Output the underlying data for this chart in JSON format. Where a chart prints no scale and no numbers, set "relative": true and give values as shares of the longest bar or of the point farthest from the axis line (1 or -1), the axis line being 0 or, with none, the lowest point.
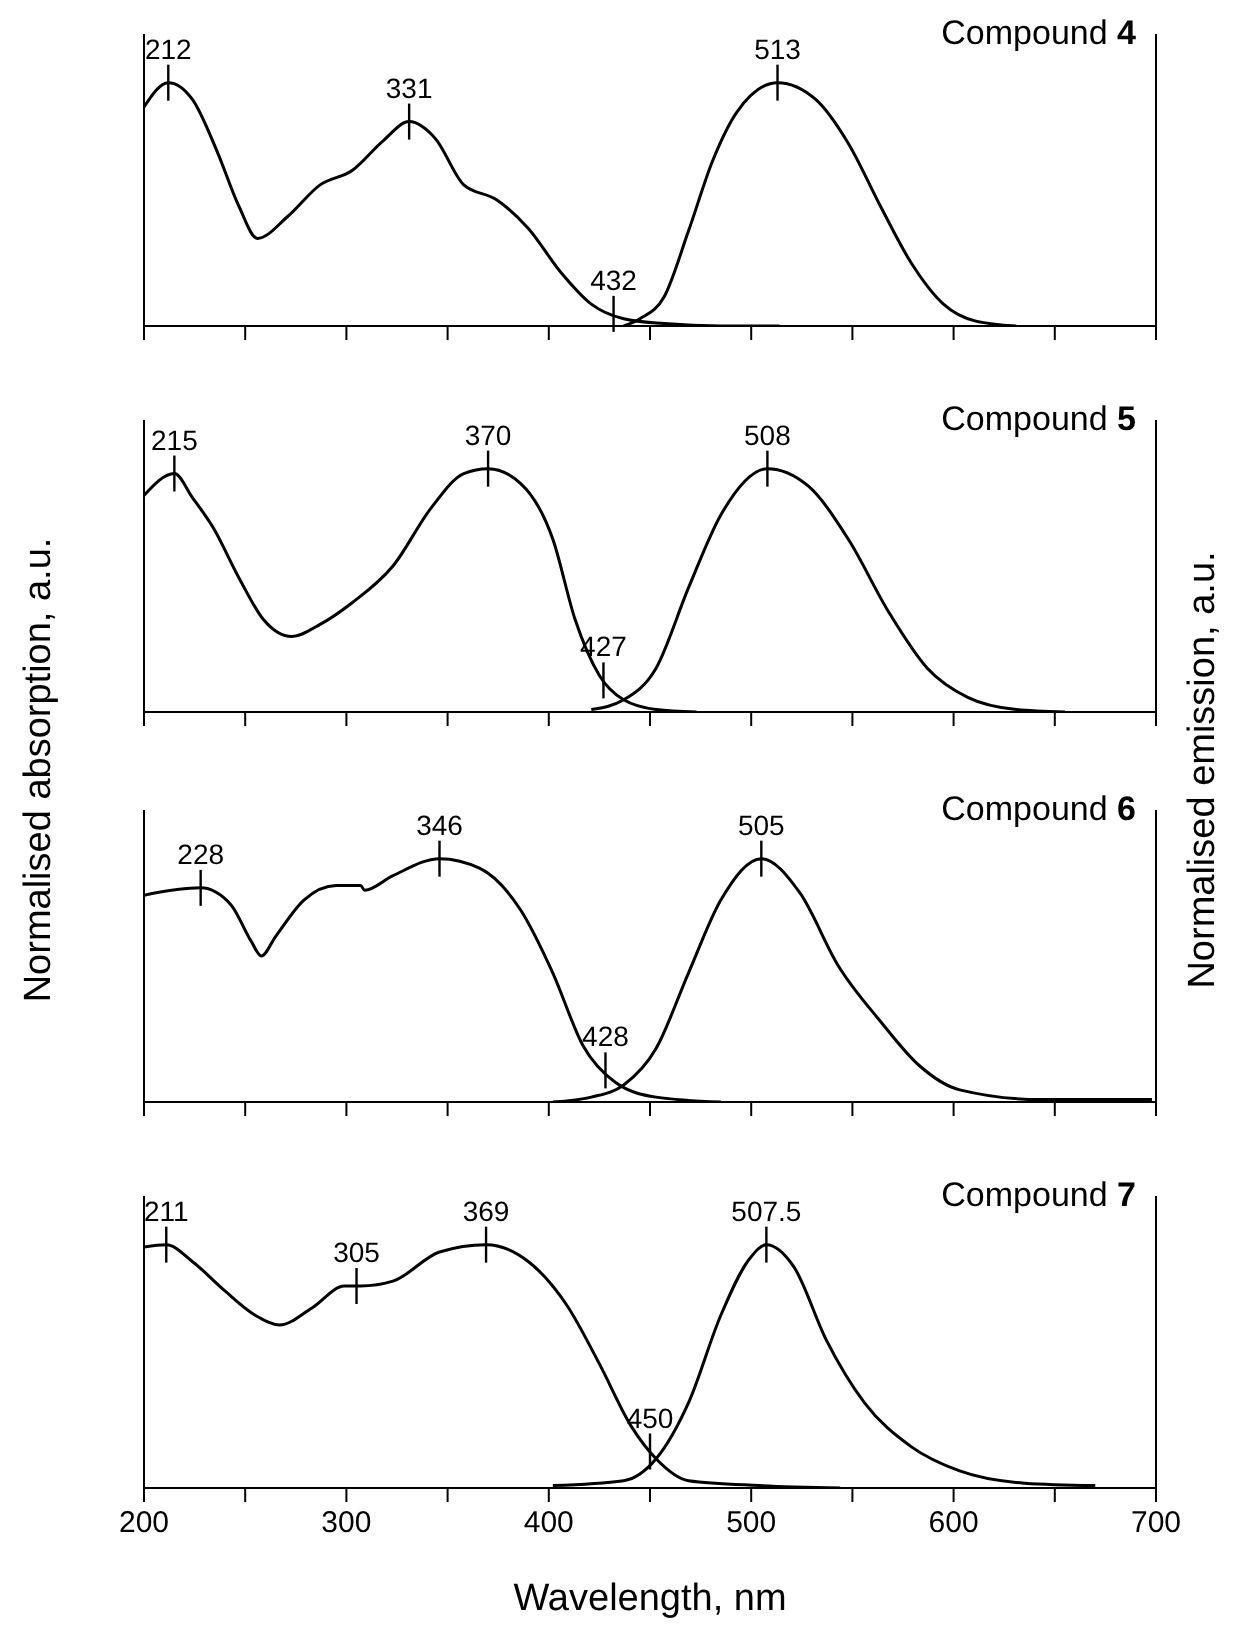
{
  "chart_data": [
    {
      "type": "line",
      "title": "Compound 4",
      "ylabel": "Normalised absorption, a.u.",
      "y2label": "Normalised emission, a.u.",
      "relative": true,
      "xlim": [
        200,
        700
      ],
      "xticks": [
        200,
        {
          "value": 250,
          "label": null
        },
        300,
        {
          "value": 350,
          "label": null
        },
        400,
        {
          "value": 450,
          "label": null
        },
        500,
        {
          "value": 550,
          "label": null
        },
        600,
        {
          "value": 650,
          "label": null
        },
        700
      ],
      "tick_labels": false,
      "grid": false,
      "series": [
        {
          "color": "#000000",
          "x": [
            200,
            212,
            224,
            236,
            247,
            256,
            271,
            287,
            303,
            318,
            331,
            344,
            358,
            374,
            390,
            406,
            421,
            437,
            457,
            485,
            514
          ],
          "values": [
            0.9,
            1,
            0.93,
            0.72,
            0.49,
            0.36,
            0.45,
            0.58,
            0.64,
            0.76,
            0.84,
            0.77,
            0.58,
            0.52,
            0.4,
            0.22,
            0.09,
            0.03,
            0.01,
            0,
            0
          ]
        },
        {
          "color": "#000000",
          "x": [
            437,
            445,
            457,
            469,
            481,
            493,
            513,
            532,
            548,
            564,
            579,
            595,
            611,
            631
          ],
          "values": [
            0,
            0.03,
            0.12,
            0.39,
            0.68,
            0.88,
            1,
            0.93,
            0.75,
            0.49,
            0.26,
            0.09,
            0.02,
            0
          ]
        }
      ],
      "annotations": [
        {
          "text": "212",
          "x": 212,
          "y": 1
        },
        {
          "text": "331",
          "x": 331,
          "y": 0.84
        },
        {
          "text": "432",
          "x": 432,
          "y": 0.05
        },
        {
          "text": "513",
          "x": 513,
          "y": 1
        }
      ]
    },
    {
      "type": "line",
      "title": "Compound 5",
      "relative": true,
      "xlim": [
        200,
        700
      ],
      "xticks": [
        200,
        {
          "value": 250,
          "label": null
        },
        300,
        {
          "value": 350,
          "label": null
        },
        400,
        {
          "value": 450,
          "label": null
        },
        500,
        {
          "value": 550,
          "label": null
        },
        600,
        {
          "value": 650,
          "label": null
        },
        700
      ],
      "tick_labels": false,
      "grid": false,
      "series": [
        {
          "color": "#000000",
          "x": [
            200,
            215,
            224,
            234,
            247,
            259,
            273,
            287,
            303,
            323,
            342,
            358,
            370,
            386,
            402,
            413,
            425,
            437,
            453,
            473
          ],
          "values": [
            0.89,
            0.98,
            0.88,
            0.76,
            0.55,
            0.38,
            0.31,
            0.36,
            0.45,
            0.6,
            0.84,
            0.98,
            1,
            0.94,
            0.71,
            0.38,
            0.15,
            0.05,
            0.01,
            0
          ]
        },
        {
          "color": "#000000",
          "x": [
            421,
            437,
            453,
            469,
            485,
            508,
            528,
            548,
            568,
            587,
            607,
            631,
            655
          ],
          "values": [
            0.01,
            0.05,
            0.18,
            0.51,
            0.81,
            1,
            0.93,
            0.71,
            0.41,
            0.18,
            0.06,
            0.01,
            0
          ]
        }
      ],
      "annotations": [
        {
          "text": "215",
          "x": 215,
          "y": 0.98
        },
        {
          "text": "370",
          "x": 370,
          "y": 1
        },
        {
          "text": "427",
          "x": 427,
          "y": 0.13
        },
        {
          "text": "508",
          "x": 508,
          "y": 1
        }
      ]
    },
    {
      "type": "line",
      "title": "Compound 6",
      "relative": true,
      "xlim": [
        200,
        700
      ],
      "xticks": [
        200,
        {
          "value": 250,
          "label": null
        },
        300,
        {
          "value": 350,
          "label": null
        },
        400,
        {
          "value": 450,
          "label": null
        },
        500,
        {
          "value": 550,
          "label": null
        },
        600,
        {
          "value": 650,
          "label": null
        },
        700
      ],
      "tick_labels": false,
      "grid": false,
      "series": [
        {
          "color": "#000000",
          "x": [
            200,
            228,
            243,
            253,
            258,
            265,
            279,
            295,
            307,
            309,
            323,
            346,
            366,
            386,
            402,
            417,
            433,
            453,
            485
          ],
          "values": [
            0.85,
            0.88,
            0.81,
            0.66,
            0.6,
            0.68,
            0.83,
            0.89,
            0.89,
            0.87,
            0.93,
            1,
            0.96,
            0.79,
            0.53,
            0.23,
            0.08,
            0.02,
            0
          ]
        },
        {
          "color": "#000000",
          "x": [
            402,
            421,
            437,
            453,
            469,
            485,
            505,
            524,
            543,
            564,
            583,
            603,
            643,
            698
          ],
          "values": [
            0,
            0.02,
            0.07,
            0.22,
            0.53,
            0.83,
            1,
            0.86,
            0.56,
            0.33,
            0.15,
            0.05,
            0.01,
            0.01
          ]
        }
      ],
      "annotations": [
        {
          "text": "228",
          "x": 228,
          "y": 0.88
        },
        {
          "text": "346",
          "x": 346,
          "y": 1
        },
        {
          "text": "428",
          "x": 428,
          "y": 0.13
        },
        {
          "text": "505",
          "x": 505,
          "y": 1
        }
      ]
    },
    {
      "type": "line",
      "title": "Compound 7",
      "xlabel": "Wavelength, nm",
      "relative": true,
      "xlim": [
        200,
        700
      ],
      "xticks": [
        200,
        {
          "value": 250,
          "label": null
        },
        300,
        {
          "value": 350,
          "label": null
        },
        400,
        {
          "value": 450,
          "label": null
        },
        500,
        {
          "value": 550,
          "label": null
        },
        600,
        {
          "value": 650,
          "label": null
        },
        700
      ],
      "tick_labels": "x",
      "grid": false,
      "series": [
        {
          "color": "#000000",
          "x": [
            200,
            211,
            224,
            240,
            255,
            267,
            283,
            299,
            307,
            323,
            346,
            369,
            390,
            409,
            425,
            441,
            453,
            469,
            504,
            544
          ],
          "values": [
            0.99,
            1,
            0.93,
            0.81,
            0.71,
            0.67,
            0.74,
            0.83,
            0.83,
            0.85,
            0.97,
            1,
            0.93,
            0.75,
            0.51,
            0.25,
            0.12,
            0.03,
            0.01,
            0
          ]
        },
        {
          "color": "#000000",
          "x": [
            402,
            437,
            453,
            469,
            485,
            499,
            507.5,
            521,
            537,
            556,
            579,
            603,
            635,
            670
          ],
          "values": [
            0.01,
            0.03,
            0.12,
            0.35,
            0.71,
            0.94,
            1,
            0.91,
            0.61,
            0.35,
            0.17,
            0.07,
            0.02,
            0.01
          ]
        }
      ],
      "annotations": [
        {
          "text": "211",
          "x": 211,
          "y": 1
        },
        {
          "text": "305",
          "x": 305,
          "y": 0.83
        },
        {
          "text": "369",
          "x": 369,
          "y": 1
        },
        {
          "text": "450",
          "x": 450,
          "y": 0.15
        },
        {
          "text": "507.5",
          "x": 507.5,
          "y": 1
        }
      ]
    }
  ]
}
